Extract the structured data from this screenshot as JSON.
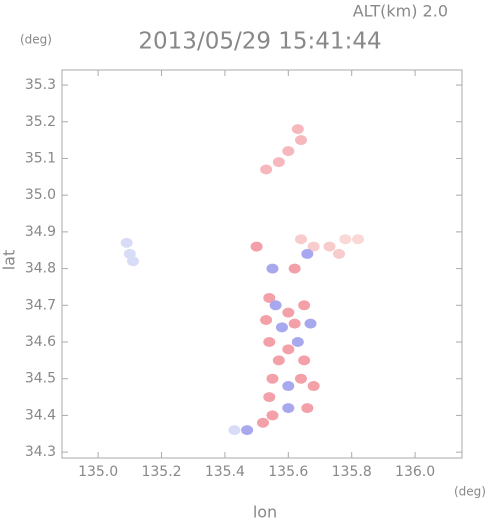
{
  "chart_data": {
    "type": "radar-map",
    "title": "2013/05/29 15:41:44",
    "subtitle": "ALT(km) 2.0",
    "x_label": "lon",
    "y_label": "lat",
    "x_unit": "(deg)",
    "y_unit": "(deg)",
    "xlim": [
      134.886,
      136.148
    ],
    "ylim": [
      34.284,
      35.341
    ],
    "xticks": [
      {
        "value": 135.0,
        "label": "135.0"
      },
      {
        "value": 135.2,
        "label": "135.2"
      },
      {
        "value": 135.4,
        "label": "135.4"
      },
      {
        "value": 135.6,
        "label": "135.6"
      },
      {
        "value": 135.8,
        "label": "135.8"
      },
      {
        "value": 136.0,
        "label": "136.0"
      }
    ],
    "yticks": [
      {
        "value": 34.3,
        "label": "34.3"
      },
      {
        "value": 34.4,
        "label": "34.4"
      },
      {
        "value": 34.5,
        "label": "34.5"
      },
      {
        "value": 34.6,
        "label": "34.6"
      },
      {
        "value": 34.7,
        "label": "34.7"
      },
      {
        "value": 34.8,
        "label": "34.8"
      },
      {
        "value": 34.9,
        "label": "34.9"
      },
      {
        "value": 35.0,
        "label": "35.0"
      },
      {
        "value": 35.1,
        "label": "35.1"
      },
      {
        "value": 35.2,
        "label": "35.2"
      },
      {
        "value": 35.3,
        "label": "35.3"
      }
    ],
    "echoes": [
      {
        "lon": 135.09,
        "lat": 34.87,
        "color": "#d8dcf6"
      },
      {
        "lon": 135.1,
        "lat": 34.84,
        "color": "#d8dcf6"
      },
      {
        "lon": 135.11,
        "lat": 34.82,
        "color": "#d8dcf6"
      },
      {
        "lon": 135.63,
        "lat": 35.18,
        "color": "#f6b8bc"
      },
      {
        "lon": 135.64,
        "lat": 35.15,
        "color": "#f6b8bc"
      },
      {
        "lon": 135.6,
        "lat": 35.12,
        "color": "#f6b8bc"
      },
      {
        "lon": 135.57,
        "lat": 35.09,
        "color": "#f6b8bc"
      },
      {
        "lon": 135.53,
        "lat": 35.07,
        "color": "#f6b8bc"
      },
      {
        "lon": 135.64,
        "lat": 34.88,
        "color": "#f8cccc"
      },
      {
        "lon": 135.68,
        "lat": 34.86,
        "color": "#f8cccc"
      },
      {
        "lon": 135.73,
        "lat": 34.86,
        "color": "#f8cccc"
      },
      {
        "lon": 135.78,
        "lat": 34.88,
        "color": "#fad8d8"
      },
      {
        "lon": 135.76,
        "lat": 34.84,
        "color": "#f8cccc"
      },
      {
        "lon": 135.82,
        "lat": 34.88,
        "color": "#fad8d8"
      },
      {
        "lon": 135.5,
        "lat": 34.86,
        "color": "#f4a0a8"
      },
      {
        "lon": 135.55,
        "lat": 34.8,
        "color": "#a8a8ee"
      },
      {
        "lon": 135.62,
        "lat": 34.8,
        "color": "#f4a0a8"
      },
      {
        "lon": 135.66,
        "lat": 34.84,
        "color": "#a8a8ee"
      },
      {
        "lon": 135.54,
        "lat": 34.72,
        "color": "#f4a0a8"
      },
      {
        "lon": 135.56,
        "lat": 34.7,
        "color": "#a8a8ee"
      },
      {
        "lon": 135.6,
        "lat": 34.68,
        "color": "#f4a0a8"
      },
      {
        "lon": 135.65,
        "lat": 34.7,
        "color": "#f4a0a8"
      },
      {
        "lon": 135.53,
        "lat": 34.66,
        "color": "#f4a0a8"
      },
      {
        "lon": 135.58,
        "lat": 34.64,
        "color": "#a8a8ee"
      },
      {
        "lon": 135.62,
        "lat": 34.65,
        "color": "#f4a0a8"
      },
      {
        "lon": 135.67,
        "lat": 34.65,
        "color": "#a8a8ee"
      },
      {
        "lon": 135.54,
        "lat": 34.6,
        "color": "#f4a0a8"
      },
      {
        "lon": 135.6,
        "lat": 34.58,
        "color": "#f4a0a8"
      },
      {
        "lon": 135.63,
        "lat": 34.6,
        "color": "#a8a8ee"
      },
      {
        "lon": 135.57,
        "lat": 34.55,
        "color": "#f4a0a8"
      },
      {
        "lon": 135.65,
        "lat": 34.55,
        "color": "#f4a0a8"
      },
      {
        "lon": 135.55,
        "lat": 34.5,
        "color": "#f4a0a8"
      },
      {
        "lon": 135.6,
        "lat": 34.48,
        "color": "#a8a8ee"
      },
      {
        "lon": 135.64,
        "lat": 34.5,
        "color": "#f4a0a8"
      },
      {
        "lon": 135.68,
        "lat": 34.48,
        "color": "#f4a0a8"
      },
      {
        "lon": 135.54,
        "lat": 34.45,
        "color": "#f4a0a8"
      },
      {
        "lon": 135.6,
        "lat": 34.42,
        "color": "#a8a8ee"
      },
      {
        "lon": 135.66,
        "lat": 34.42,
        "color": "#f4a0a8"
      },
      {
        "lon": 135.55,
        "lat": 34.4,
        "color": "#f4a0a8"
      },
      {
        "lon": 135.52,
        "lat": 34.38,
        "color": "#f4a0a8"
      },
      {
        "lon": 135.47,
        "lat": 34.36,
        "color": "#a8a8ee"
      },
      {
        "lon": 135.43,
        "lat": 34.36,
        "color": "#d8dcf6"
      }
    ]
  }
}
